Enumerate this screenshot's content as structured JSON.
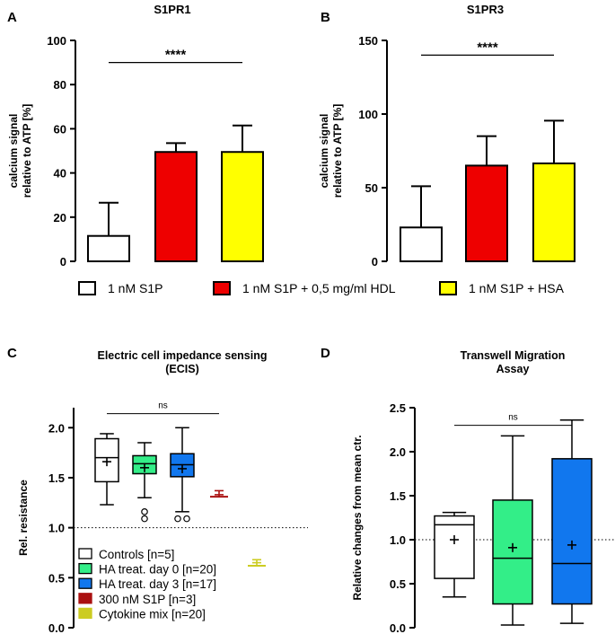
{
  "chart_data": [
    {
      "panel": "A",
      "type": "bar",
      "title": "S1PR1",
      "ylabel_lines": [
        "calcium signal",
        "relative to ATP [%]"
      ],
      "categories": [
        "1 nM S1P",
        "1 nM S1P + 0,5 mg/ml HDL",
        "1 nM S1P + HSA"
      ],
      "values": [
        11.5,
        49.5,
        49.5
      ],
      "errors": [
        15,
        4,
        12
      ],
      "colors": [
        "#ffffff",
        "#ee0000",
        "#ffff00"
      ],
      "ylim": [
        0,
        100
      ],
      "yticks": [
        "0",
        "20",
        "40",
        "60",
        "80",
        "100"
      ],
      "significance": {
        "label": "****",
        "from": 0,
        "to": 2,
        "y": 90
      }
    },
    {
      "panel": "B",
      "type": "bar",
      "title": "S1PR3",
      "ylabel_lines": [
        "calcium signal",
        "relative to ATP [%]"
      ],
      "categories": [
        "1 nM S1P",
        "1 nM S1P + 0,5 mg/ml HDL",
        "1 nM S1P + HSA"
      ],
      "values": [
        23,
        65,
        66.5
      ],
      "errors": [
        28,
        20,
        29
      ],
      "colors": [
        "#ffffff",
        "#ee0000",
        "#ffff00"
      ],
      "ylim": [
        0,
        150
      ],
      "yticks": [
        "0",
        "50",
        "100",
        "150"
      ],
      "significance": {
        "label": "****",
        "from": 0,
        "to": 2,
        "y": 140
      }
    },
    {
      "panel": "C",
      "type": "box",
      "title_lines": [
        "Electric cell impedance sensing",
        "(ECIS)"
      ],
      "ylabel": "Rel. resistance",
      "ylim": [
        0,
        2.2
      ],
      "yticks": [
        "0.0",
        "0.5",
        "1.0",
        "1.5",
        "2.0"
      ],
      "reference_line": 1.0,
      "significance": {
        "label": "ns",
        "from": 0,
        "to": 3,
        "y": 2.14
      },
      "groups": [
        {
          "name": "Controls [n=5]",
          "color": "#ffffff",
          "whisker_low": 1.23,
          "q1": 1.46,
          "median": 1.7,
          "q3": 1.89,
          "whisker_high": 1.94,
          "mean": 1.66,
          "outliers": []
        },
        {
          "name": "HA treat. day 0 [n=20]",
          "color": "#33ee88",
          "whisker_low": 1.3,
          "q1": 1.54,
          "median": 1.64,
          "q3": 1.72,
          "whisker_high": 1.85,
          "mean": 1.6,
          "outliers": [
            1.16,
            1.09
          ]
        },
        {
          "name": "HA treat. day 3 [n=17]",
          "color": "#1177ee",
          "whisker_low": 1.16,
          "q1": 1.51,
          "median": 1.63,
          "q3": 1.74,
          "whisker_high": 2.0,
          "mean": 1.59,
          "outliers": [
            1.09,
            1.09
          ]
        },
        {
          "name": "300 nM S1P [n=3]",
          "color": "#aa1111",
          "low": 1.31,
          "mean": 1.33,
          "high": 1.37
        },
        {
          "name": "Cytokine mix [n=20]",
          "color": "#cccc22",
          "low": 0.62,
          "mean": 0.65,
          "high": 0.68
        }
      ]
    },
    {
      "panel": "D",
      "type": "box",
      "title_lines": [
        "Transwell Migration",
        "Assay"
      ],
      "ylabel": "Relative changes from mean ctr.",
      "ylim": [
        0,
        2.5
      ],
      "yticks": [
        "0.0",
        "0.5",
        "1.0",
        "1.5",
        "2.0",
        "2.5"
      ],
      "reference_line": 1.0,
      "significance": {
        "label": "ns",
        "from": 0,
        "to": 2,
        "y": 2.3
      },
      "groups": [
        {
          "color": "#ffffff",
          "whisker_low": 0.35,
          "q1": 0.56,
          "median": 1.17,
          "q3": 1.27,
          "whisker_high": 1.31,
          "mean": 1.0
        },
        {
          "color": "#33ee88",
          "whisker_low": 0.03,
          "q1": 0.27,
          "median": 0.79,
          "q3": 1.45,
          "whisker_high": 2.18,
          "mean": 0.91
        },
        {
          "color": "#1177ee",
          "whisker_low": 0.05,
          "q1": 0.27,
          "median": 0.73,
          "q3": 1.92,
          "whisker_high": 2.36,
          "mean": 0.94
        }
      ]
    }
  ],
  "panel_labels": [
    "A",
    "B",
    "C",
    "D"
  ]
}
